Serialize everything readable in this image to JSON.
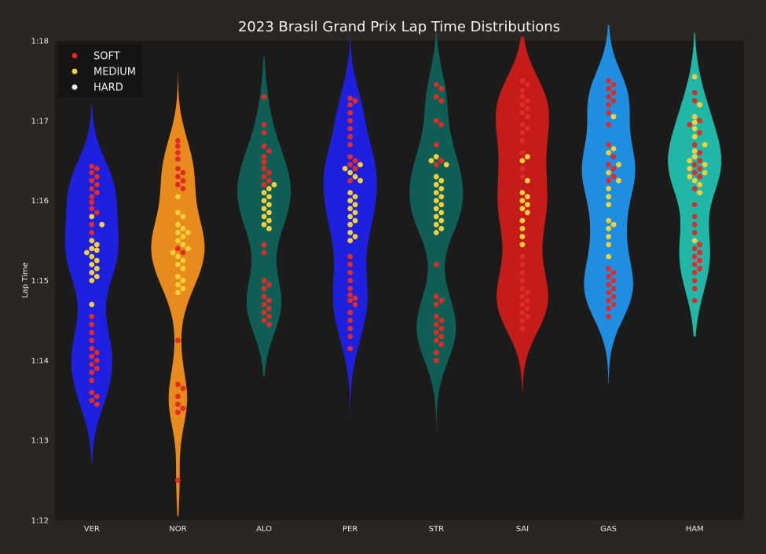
{
  "chart_data": {
    "type": "violin-swarm",
    "title": "2023 Brasil Grand Prix Lap Time Distributions",
    "ylabel": "Lap Time",
    "xlabel": "",
    "ylim_seconds": [
      72,
      78
    ],
    "y_ticks": [
      {
        "value": 72,
        "label": "1:12"
      },
      {
        "value": 73,
        "label": "1:13"
      },
      {
        "value": 74,
        "label": "1:14"
      },
      {
        "value": 75,
        "label": "1:15"
      },
      {
        "value": 76,
        "label": "1:16"
      },
      {
        "value": 77,
        "label": "1:17"
      },
      {
        "value": 78,
        "label": "1:18"
      }
    ],
    "legend": {
      "position": "top-left",
      "entries": [
        {
          "label": "SOFT",
          "color": "#e02b26"
        },
        {
          "label": "MEDIUM",
          "color": "#f5d03a"
        },
        {
          "label": "HARD",
          "color": "#f5f5f5"
        }
      ]
    },
    "compound_colors": {
      "SOFT": "#e02b26",
      "MEDIUM": "#f5d03a",
      "HARD": "#f5f5f5"
    },
    "drivers": [
      {
        "name": "VER",
        "color": "#1f1fe0",
        "min": 72.7,
        "max": 77.2,
        "soft": [
          76.43,
          76.4,
          76.35,
          76.3,
          76.25,
          76.2,
          76.15,
          76.1,
          76.05,
          75.98,
          75.9,
          75.85,
          75.7,
          75.6,
          74.55,
          74.45,
          74.35,
          74.25,
          74.15,
          73.95,
          74.1,
          74.05,
          74.0,
          73.9,
          73.85,
          73.75,
          73.6,
          73.55,
          73.5,
          73.45
        ],
        "medium": [
          75.8,
          75.7,
          75.5,
          75.45,
          75.4,
          75.38,
          75.35,
          75.3,
          75.25,
          75.2,
          75.15,
          75.1,
          75.05,
          75.0,
          74.7
        ]
      },
      {
        "name": "NOR",
        "color": "#e88a1c",
        "min": 72.05,
        "max": 77.6,
        "soft": [
          76.75,
          76.68,
          76.6,
          76.52,
          76.4,
          76.35,
          76.3,
          76.25,
          76.2,
          76.15,
          75.4,
          75.35,
          74.25,
          73.7,
          73.65,
          73.55,
          73.45,
          73.4,
          73.35,
          72.5
        ],
        "medium": [
          76.05,
          75.85,
          75.8,
          75.7,
          75.65,
          75.6,
          75.55,
          75.5,
          75.45,
          75.4,
          75.35,
          75.3,
          75.25,
          75.2,
          75.15,
          75.05,
          75.0,
          74.95,
          74.9,
          74.85,
          75.6
        ]
      },
      {
        "name": "ALO",
        "color": "#0e5e55",
        "min": 73.8,
        "max": 77.8,
        "soft": [
          77.3,
          76.95,
          76.85,
          76.68,
          76.62,
          76.55,
          76.48,
          76.4,
          76.35,
          76.3,
          76.25,
          76.2,
          75.45,
          75.35,
          75.0,
          74.95,
          74.9,
          74.8,
          74.75,
          74.7,
          74.65,
          74.6,
          74.55,
          74.5,
          74.45
        ],
        "medium": [
          76.2,
          76.15,
          76.1,
          76.05,
          76.0,
          75.95,
          75.9,
          75.85,
          75.8,
          75.75,
          75.7,
          75.65
        ]
      },
      {
        "name": "PER",
        "color": "#1f1fe0",
        "min": 73.3,
        "max": 78.05,
        "soft": [
          77.28,
          77.25,
          77.2,
          77.1,
          77.0,
          76.9,
          76.8,
          76.7,
          76.55,
          76.5,
          76.45,
          76.4,
          76.25,
          75.3,
          75.2,
          75.1,
          75.0,
          74.9,
          74.82,
          74.78,
          74.75,
          74.7,
          74.6,
          74.5,
          74.4,
          74.3,
          74.15
        ],
        "medium": [
          76.45,
          76.4,
          76.35,
          76.3,
          76.25,
          76.1,
          76.05,
          76.0,
          75.95,
          75.9,
          75.85,
          75.8,
          75.75,
          75.7,
          75.6,
          75.55,
          75.5
        ]
      },
      {
        "name": "STR",
        "color": "#0e5e55",
        "min": 73.1,
        "max": 78.1,
        "soft": [
          77.45,
          77.4,
          77.3,
          77.25,
          77.0,
          76.95,
          76.7,
          76.5,
          76.45,
          75.2,
          74.8,
          74.75,
          74.7,
          74.55,
          74.5,
          74.45,
          74.4,
          74.35,
          74.3,
          74.25,
          74.2,
          74.1,
          74.0
        ],
        "medium": [
          76.55,
          76.5,
          76.45,
          76.3,
          76.25,
          76.2,
          76.15,
          76.1,
          76.05,
          76.0,
          75.95,
          75.9,
          75.85,
          75.8,
          75.75,
          75.7,
          75.65,
          75.6
        ]
      },
      {
        "name": "SAI",
        "color": "#c41b1b",
        "min": 73.6,
        "max": 78.05,
        "soft": [
          77.5,
          77.45,
          77.38,
          77.3,
          77.25,
          77.2,
          77.15,
          77.1,
          77.05,
          76.95,
          76.9,
          76.85,
          76.75,
          76.6,
          76.4,
          76.3,
          75.3,
          75.2,
          75.1,
          75.0,
          74.9,
          74.85,
          74.8,
          74.75,
          74.7,
          74.65,
          74.6,
          74.55,
          74.5,
          74.4
        ],
        "medium": [
          76.55,
          76.5,
          76.25,
          76.1,
          76.05,
          76.0,
          75.95,
          75.9,
          75.85,
          75.75,
          75.65,
          75.55,
          75.45
        ]
      },
      {
        "name": "GAS",
        "color": "#1f8ee0",
        "min": 73.7,
        "max": 78.2,
        "soft": [
          77.5,
          77.45,
          77.4,
          77.35,
          77.3,
          77.25,
          77.2,
          77.1,
          76.95,
          76.7,
          76.55,
          76.45,
          76.4,
          76.3,
          76.25,
          75.15,
          75.1,
          75.05,
          75.0,
          74.95,
          74.9,
          74.85,
          74.8,
          74.75,
          74.7,
          74.65,
          74.55
        ],
        "medium": [
          77.05,
          76.65,
          76.6,
          76.45,
          76.35,
          76.25,
          76.15,
          76.05,
          75.95,
          75.75,
          75.7,
          75.65,
          75.55,
          75.45,
          75.3
        ]
      },
      {
        "name": "HAM",
        "color": "#1fb8a8",
        "min": 74.3,
        "max": 78.1,
        "soft": [
          77.35,
          77.25,
          77.0,
          76.95,
          76.85,
          76.7,
          76.6,
          76.5,
          76.45,
          76.4,
          76.35,
          76.3,
          76.15,
          75.95,
          75.8,
          75.7,
          75.6,
          75.45,
          75.4,
          75.35,
          75.3,
          75.25,
          75.2,
          75.15,
          75.1,
          75.0,
          74.9,
          74.75
        ],
        "medium": [
          77.55,
          77.2,
          77.05,
          76.98,
          76.9,
          76.8,
          76.7,
          76.62,
          76.55,
          76.5,
          76.45,
          76.4,
          76.35,
          76.3,
          76.25,
          76.2,
          76.1,
          75.5
        ]
      }
    ]
  }
}
